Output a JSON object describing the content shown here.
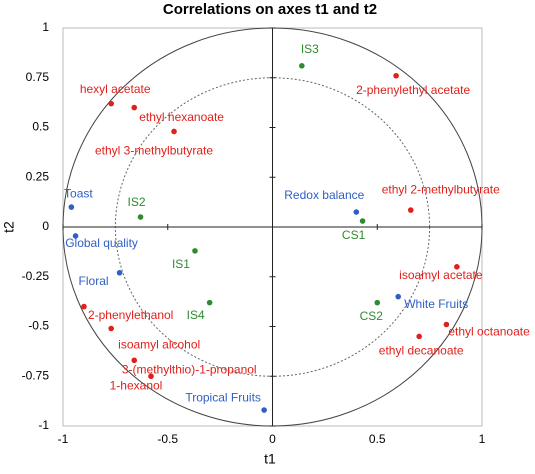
{
  "chart_data": {
    "type": "scatter",
    "title": "Correlations on axes t1 and t2",
    "x_label": "t1",
    "y_label": "t2",
    "xlim": [
      -1,
      1
    ],
    "ylim": [
      -1,
      1
    ],
    "xticks": [
      -1,
      -0.5,
      0,
      0.5,
      1
    ],
    "yticks": [
      -1,
      -0.75,
      -0.5,
      -0.25,
      0,
      0.25,
      0.5,
      0.75,
      1
    ],
    "series": [
      {
        "color": "#e0201b",
        "labels": [
          "hexyl acetate",
          "ethyl hexanoate",
          "ethyl 3-methylbutyrate",
          "2-phenylethyl acetate",
          "ethyl 2-methylbutyrate",
          "isoamyl acetate",
          "ethyl octanoate",
          "ethyl decanoate",
          "2-phenylethanol",
          "isoamyl alcohol",
          "3-(methylthio)-1-propanol",
          "1-hexanol"
        ],
        "x": [
          -0.77,
          -0.66,
          -0.47,
          0.59,
          0.66,
          0.88,
          0.83,
          0.7,
          -0.9,
          -0.77,
          -0.66,
          -0.58
        ],
        "y": [
          0.62,
          0.6,
          0.48,
          0.76,
          0.085,
          -0.2,
          -0.49,
          -0.55,
          -0.4,
          -0.51,
          -0.67,
          -0.75
        ]
      },
      {
        "color": "#2f5fc4",
        "labels": [
          "Toast",
          "Global quality",
          "Floral",
          "Redox balance",
          "White Fruits",
          "Tropical Fruits"
        ],
        "x": [
          -0.96,
          -0.94,
          -0.73,
          0.4,
          0.6,
          -0.04
        ],
        "y": [
          0.1,
          -0.045,
          -0.23,
          0.075,
          -0.35,
          -0.92
        ]
      },
      {
        "color": "#2e8b2e",
        "labels": [
          "IS3",
          "IS2",
          "IS1",
          "IS4",
          "CS1",
          "CS2"
        ],
        "x": [
          0.14,
          -0.63,
          -0.37,
          -0.3,
          0.43,
          0.5
        ],
        "y": [
          0.81,
          0.05,
          -0.12,
          -0.38,
          0.03,
          -0.38
        ]
      }
    ]
  }
}
